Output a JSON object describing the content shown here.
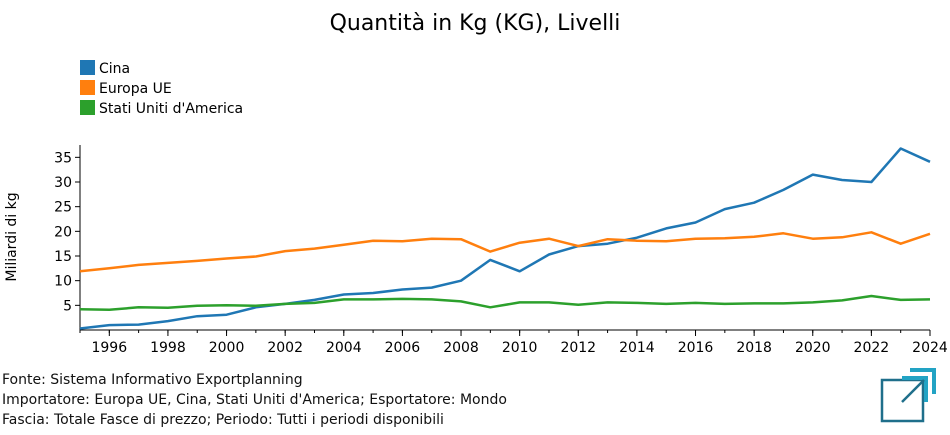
{
  "chart_data": {
    "type": "line",
    "title": "Quantità in Kg (KG), Livelli",
    "xlabel": "",
    "ylabel": "Miliardi di kg",
    "xlim": [
      1995,
      2024
    ],
    "ylim": [
      0,
      37.5
    ],
    "x": [
      1995,
      1996,
      1997,
      1998,
      1999,
      2000,
      2001,
      2002,
      2003,
      2004,
      2005,
      2006,
      2007,
      2008,
      2009,
      2010,
      2011,
      2012,
      2013,
      2014,
      2015,
      2016,
      2017,
      2018,
      2019,
      2020,
      2021,
      2022,
      2023,
      2024
    ],
    "x_ticks": [
      1996,
      1998,
      2000,
      2002,
      2004,
      2006,
      2008,
      2010,
      2012,
      2014,
      2016,
      2018,
      2020,
      2022,
      2024
    ],
    "y_ticks": [
      5,
      10,
      15,
      20,
      25,
      30,
      35
    ],
    "grid": false,
    "legend_position": "top-left",
    "series": [
      {
        "name": "Cina",
        "color": "#1f77b4",
        "values": [
          0.3,
          1.0,
          1.1,
          1.8,
          2.8,
          3.1,
          4.6,
          5.3,
          6.1,
          7.2,
          7.5,
          8.2,
          8.6,
          10.0,
          14.2,
          11.9,
          15.3,
          17.0,
          17.5,
          18.7,
          20.6,
          21.8,
          24.5,
          25.8,
          28.4,
          31.5,
          30.4,
          30.0,
          36.8,
          34.1
        ]
      },
      {
        "name": "Europa UE",
        "color": "#ff7f0e",
        "values": [
          11.9,
          12.5,
          13.2,
          13.6,
          14.0,
          14.5,
          14.9,
          16.0,
          16.5,
          17.3,
          18.1,
          18.0,
          18.5,
          18.4,
          15.9,
          17.7,
          18.5,
          17.0,
          18.4,
          18.1,
          18.0,
          18.5,
          18.6,
          18.9,
          19.6,
          18.5,
          18.8,
          19.8,
          17.5,
          19.5
        ]
      },
      {
        "name": "Stati Uniti d'America",
        "color": "#2ca02c",
        "values": [
          4.2,
          4.1,
          4.6,
          4.5,
          4.9,
          5.0,
          4.9,
          5.3,
          5.5,
          6.2,
          6.2,
          6.3,
          6.2,
          5.8,
          4.6,
          5.6,
          5.6,
          5.1,
          5.6,
          5.5,
          5.3,
          5.5,
          5.3,
          5.4,
          5.4,
          5.6,
          6.0,
          6.9,
          6.1,
          6.2
        ]
      }
    ]
  },
  "footer": {
    "line1": "Fonte: Sistema Informativo Exportplanning",
    "line2": "Importatore: Europa UE, Cina, Stati Uniti d'America; Esportatore: Mondo",
    "line3": "Fascia: Totale Fasce di prezzo; Periodo: Tutti i periodi disponibili"
  },
  "logo": {
    "icon": "exportplanning-logo-icon",
    "colors": [
      "#1f6f8b",
      "#22a3c4"
    ]
  }
}
